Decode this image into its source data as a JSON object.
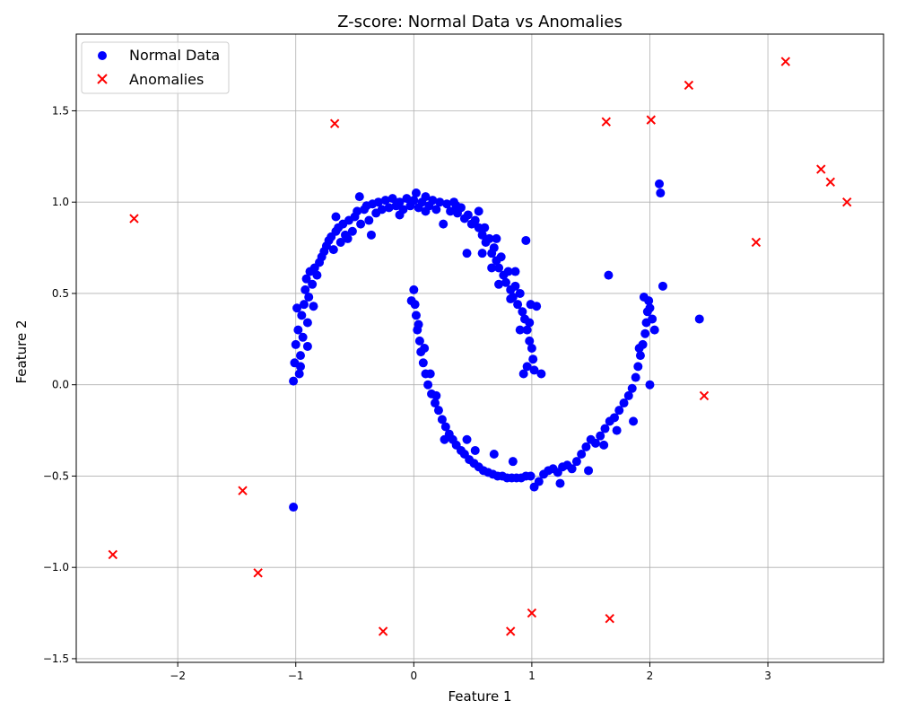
{
  "chart_data": {
    "type": "scatter",
    "title": "Z-score: Normal Data vs Anomalies",
    "xlabel": "Feature 1",
    "ylabel": "Feature 2",
    "xlim": [
      -2.86,
      3.98
    ],
    "ylim": [
      -1.52,
      1.92
    ],
    "xticks": [
      -2,
      -1,
      0,
      1,
      2,
      3
    ],
    "yticks": [
      -1.5,
      -1.0,
      -0.5,
      0.0,
      0.5,
      1.0,
      1.5
    ],
    "xtick_labels": [
      "−2",
      "−1",
      "0",
      "1",
      "2",
      "3"
    ],
    "ytick_labels": [
      "−1.5",
      "−1.0",
      "−0.5",
      "0.0",
      "0.5",
      "1.0",
      "1.5"
    ],
    "grid": true,
    "legend": "top-left",
    "series": [
      {
        "name": "Normal Data",
        "marker": "circle",
        "color": "#0000ff",
        "points": [
          [
            -1.02,
            0.02
          ],
          [
            -1.01,
            0.12
          ],
          [
            -1.0,
            0.22
          ],
          [
            -0.98,
            0.3
          ],
          [
            -0.97,
            0.06
          ],
          [
            -0.96,
            0.16
          ],
          [
            -0.95,
            0.38
          ],
          [
            -0.94,
            0.26
          ],
          [
            -0.93,
            0.44
          ],
          [
            -0.92,
            0.52
          ],
          [
            -0.91,
            0.58
          ],
          [
            -0.9,
            0.34
          ],
          [
            -0.89,
            0.48
          ],
          [
            -0.88,
            0.62
          ],
          [
            -0.86,
            0.55
          ],
          [
            -0.85,
            0.43
          ],
          [
            -0.84,
            0.64
          ],
          [
            -0.82,
            0.6
          ],
          [
            -0.8,
            0.67
          ],
          [
            -0.78,
            0.7
          ],
          [
            -0.76,
            0.73
          ],
          [
            -0.74,
            0.76
          ],
          [
            -0.72,
            0.79
          ],
          [
            -0.7,
            0.81
          ],
          [
            -0.68,
            0.74
          ],
          [
            -0.66,
            0.84
          ],
          [
            -0.64,
            0.86
          ],
          [
            -0.62,
            0.78
          ],
          [
            -0.6,
            0.88
          ],
          [
            -0.58,
            0.82
          ],
          [
            -0.55,
            0.9
          ],
          [
            -0.52,
            0.84
          ],
          [
            -0.5,
            0.92
          ],
          [
            -0.48,
            0.95
          ],
          [
            -0.45,
            0.88
          ],
          [
            -0.42,
            0.96
          ],
          [
            -0.4,
            0.98
          ],
          [
            -0.38,
            0.9
          ],
          [
            -0.35,
            0.99
          ],
          [
            -0.32,
            0.94
          ],
          [
            -0.3,
            1.0
          ],
          [
            -0.27,
            0.96
          ],
          [
            -0.24,
            1.01
          ],
          [
            -0.21,
            0.97
          ],
          [
            -0.18,
            1.02
          ],
          [
            -0.15,
            0.98
          ],
          [
            -0.12,
            1.0
          ],
          [
            -0.09,
            0.96
          ],
          [
            -0.06,
            1.02
          ],
          [
            -0.03,
            0.98
          ],
          [
            0.0,
            1.01
          ],
          [
            0.02,
            1.05
          ],
          [
            0.04,
            0.97
          ],
          [
            0.07,
            1.0
          ],
          [
            0.1,
            1.03
          ],
          [
            0.13,
            0.98
          ],
          [
            0.16,
            1.01
          ],
          [
            0.19,
            0.96
          ],
          [
            0.22,
            1.0
          ],
          [
            0.25,
            0.88
          ],
          [
            0.28,
            0.99
          ],
          [
            0.31,
            0.95
          ],
          [
            0.34,
            1.0
          ],
          [
            0.37,
            0.94
          ],
          [
            0.4,
            0.97
          ],
          [
            0.43,
            0.91
          ],
          [
            0.46,
            0.93
          ],
          [
            0.49,
            0.88
          ],
          [
            0.52,
            0.9
          ],
          [
            0.55,
            0.86
          ],
          [
            0.58,
            0.82
          ],
          [
            0.61,
            0.78
          ],
          [
            0.64,
            0.8
          ],
          [
            0.66,
            0.72
          ],
          [
            0.68,
            0.75
          ],
          [
            0.7,
            0.68
          ],
          [
            0.72,
            0.64
          ],
          [
            0.74,
            0.7
          ],
          [
            0.76,
            0.6
          ],
          [
            0.78,
            0.56
          ],
          [
            0.8,
            0.62
          ],
          [
            0.82,
            0.52
          ],
          [
            0.84,
            0.48
          ],
          [
            0.86,
            0.54
          ],
          [
            0.88,
            0.44
          ],
          [
            0.9,
            0.5
          ],
          [
            0.92,
            0.4
          ],
          [
            0.94,
            0.36
          ],
          [
            0.96,
            0.3
          ],
          [
            0.98,
            0.24
          ],
          [
            1.0,
            0.2
          ],
          [
            1.01,
            0.14
          ],
          [
            1.02,
            0.08
          ],
          [
            0.96,
            0.1
          ],
          [
            0.98,
            0.34
          ],
          [
            1.04,
            0.43
          ],
          [
            1.08,
            0.06
          ],
          [
            0.95,
            0.79
          ],
          [
            0.45,
            0.72
          ],
          [
            0.6,
            0.86
          ],
          [
            0.0,
            0.52
          ],
          [
            0.01,
            0.44
          ],
          [
            0.02,
            0.38
          ],
          [
            0.03,
            0.3
          ],
          [
            0.05,
            0.24
          ],
          [
            0.06,
            0.18
          ],
          [
            0.08,
            0.12
          ],
          [
            0.1,
            0.06
          ],
          [
            0.12,
            0.0
          ],
          [
            0.15,
            -0.05
          ],
          [
            0.18,
            -0.1
          ],
          [
            0.21,
            -0.14
          ],
          [
            0.24,
            -0.19
          ],
          [
            0.27,
            -0.23
          ],
          [
            0.3,
            -0.27
          ],
          [
            0.33,
            -0.3
          ],
          [
            0.36,
            -0.33
          ],
          [
            0.4,
            -0.36
          ],
          [
            0.43,
            -0.38
          ],
          [
            0.47,
            -0.41
          ],
          [
            0.51,
            -0.43
          ],
          [
            0.55,
            -0.45
          ],
          [
            0.59,
            -0.47
          ],
          [
            0.63,
            -0.48
          ],
          [
            0.67,
            -0.49
          ],
          [
            0.71,
            -0.5
          ],
          [
            0.75,
            -0.5
          ],
          [
            0.79,
            -0.51
          ],
          [
            0.83,
            -0.51
          ],
          [
            0.87,
            -0.51
          ],
          [
            0.91,
            -0.51
          ],
          [
            0.95,
            -0.5
          ],
          [
            0.99,
            -0.5
          ],
          [
            1.02,
            -0.56
          ],
          [
            1.06,
            -0.53
          ],
          [
            1.1,
            -0.49
          ],
          [
            1.14,
            -0.47
          ],
          [
            1.18,
            -0.46
          ],
          [
            1.22,
            -0.48
          ],
          [
            1.26,
            -0.45
          ],
          [
            1.3,
            -0.44
          ],
          [
            1.34,
            -0.46
          ],
          [
            1.38,
            -0.42
          ],
          [
            1.42,
            -0.38
          ],
          [
            1.46,
            -0.34
          ],
          [
            1.5,
            -0.3
          ],
          [
            1.54,
            -0.32
          ],
          [
            1.58,
            -0.28
          ],
          [
            1.62,
            -0.24
          ],
          [
            1.66,
            -0.2
          ],
          [
            1.7,
            -0.18
          ],
          [
            1.74,
            -0.14
          ],
          [
            1.78,
            -0.1
          ],
          [
            1.82,
            -0.06
          ],
          [
            1.85,
            -0.02
          ],
          [
            1.88,
            0.04
          ],
          [
            1.9,
            0.1
          ],
          [
            1.92,
            0.16
          ],
          [
            1.94,
            0.22
          ],
          [
            1.96,
            0.28
          ],
          [
            1.97,
            0.34
          ],
          [
            1.98,
            0.4
          ],
          [
            1.99,
            0.46
          ],
          [
            2.0,
            0.42
          ],
          [
            2.02,
            0.36
          ],
          [
            2.04,
            0.3
          ],
          [
            1.95,
            0.48
          ],
          [
            2.0,
            0.0
          ],
          [
            2.11,
            0.54
          ],
          [
            2.08,
            1.1
          ],
          [
            2.09,
            1.05
          ],
          [
            1.65,
            0.6
          ],
          [
            2.42,
            0.36
          ],
          [
            -1.02,
            -0.67
          ],
          [
            -0.02,
            0.46
          ],
          [
            0.04,
            0.33
          ],
          [
            0.09,
            0.2
          ],
          [
            0.14,
            0.06
          ],
          [
            0.19,
            -0.06
          ],
          [
            0.26,
            -0.3
          ],
          [
            0.45,
            -0.3
          ],
          [
            0.52,
            -0.36
          ],
          [
            0.68,
            -0.38
          ],
          [
            0.84,
            -0.42
          ],
          [
            1.24,
            -0.54
          ],
          [
            1.48,
            -0.47
          ],
          [
            1.61,
            -0.33
          ],
          [
            1.72,
            -0.25
          ],
          [
            1.86,
            -0.2
          ],
          [
            1.91,
            0.2
          ],
          [
            -0.99,
            0.42
          ],
          [
            -0.96,
            0.1
          ],
          [
            -0.9,
            0.21
          ],
          [
            -0.66,
            0.92
          ],
          [
            -0.56,
            0.8
          ],
          [
            -0.46,
            1.03
          ],
          [
            -0.36,
            0.82
          ],
          [
            -0.12,
            0.93
          ],
          [
            0.1,
            0.95
          ],
          [
            0.36,
            0.98
          ],
          [
            0.55,
            0.95
          ],
          [
            0.7,
            0.8
          ],
          [
            0.82,
            0.47
          ],
          [
            0.9,
            0.3
          ],
          [
            0.93,
            0.06
          ],
          [
            0.99,
            0.44
          ],
          [
            0.72,
            0.55
          ],
          [
            0.86,
            0.62
          ],
          [
            0.58,
            0.72
          ],
          [
            0.66,
            0.64
          ]
        ]
      },
      {
        "name": "Anomalies",
        "marker": "x",
        "color": "#ff0000",
        "points": [
          [
            -2.37,
            0.91
          ],
          [
            -0.67,
            1.43
          ],
          [
            -2.55,
            -0.93
          ],
          [
            -1.45,
            -0.58
          ],
          [
            -1.32,
            -1.03
          ],
          [
            -0.26,
            -1.35
          ],
          [
            0.82,
            -1.35
          ],
          [
            1.0,
            -1.25
          ],
          [
            1.66,
            -1.28
          ],
          [
            2.46,
            -0.06
          ],
          [
            1.63,
            1.44
          ],
          [
            2.01,
            1.45
          ],
          [
            2.33,
            1.64
          ],
          [
            2.9,
            0.78
          ],
          [
            3.15,
            1.77
          ],
          [
            3.45,
            1.18
          ],
          [
            3.53,
            1.11
          ],
          [
            3.67,
            1.0
          ]
        ]
      }
    ]
  }
}
